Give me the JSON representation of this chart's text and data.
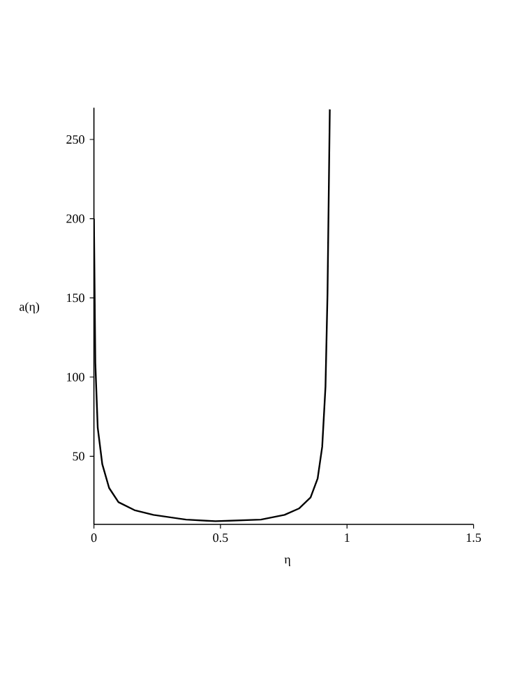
{
  "chart_data": {
    "type": "line",
    "xlabel": "η",
    "ylabel": "a(η)",
    "x": [
      0,
      0.0055,
      0.015,
      0.033,
      0.06,
      0.097,
      0.16,
      0.235,
      0.364,
      0.48,
      0.66,
      0.753,
      0.81,
      0.856,
      0.884,
      0.902,
      0.915,
      0.923,
      0.932
    ],
    "series": [
      {
        "color": "#000000",
        "values": [
          200,
          109,
          68,
          45,
          30,
          21,
          16,
          13,
          10,
          9,
          10,
          13,
          17,
          24,
          36,
          56,
          94,
          153,
          269
        ]
      }
    ],
    "xlim": [
      0,
      1.5
    ],
    "ylim": [
      7,
      270
    ],
    "xticks": [
      0,
      0.5,
      1,
      1.5
    ],
    "yticks": [
      50,
      100,
      150,
      200,
      250
    ],
    "grid": false,
    "marker": "none",
    "line_style": "solid"
  }
}
